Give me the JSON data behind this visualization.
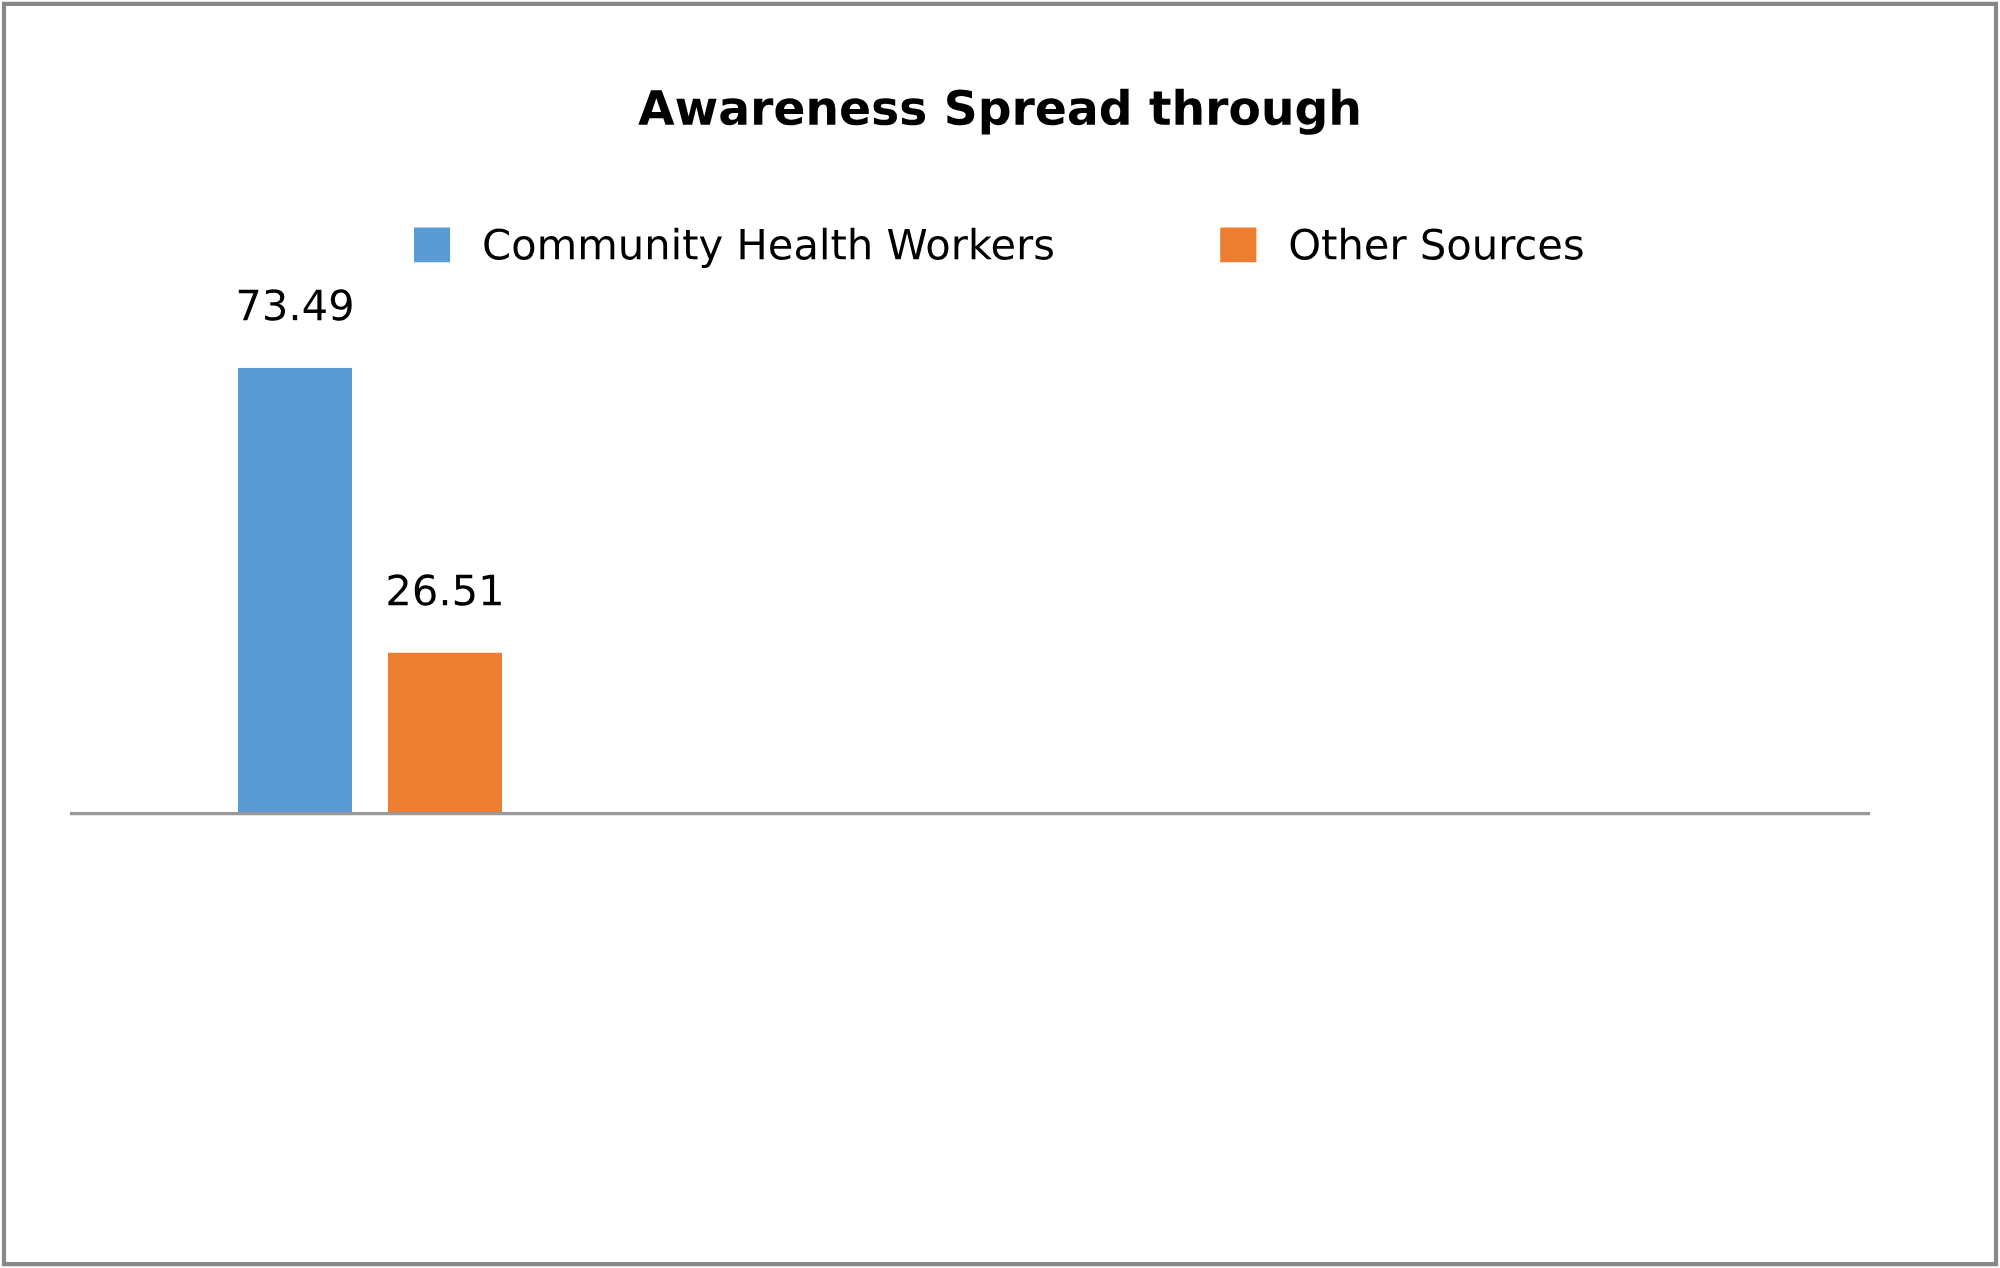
{
  "chart_data": {
    "type": "bar",
    "title": "Awareness Spread through",
    "categories": [
      null
    ],
    "series": [
      {
        "name": "Community Health Workers",
        "color": "#5b9bd5",
        "values": [
          73.49
        ]
      },
      {
        "name": "Other Sources",
        "color": "#ed7d31",
        "values": [
          26.51
        ]
      }
    ],
    "data_labels": true,
    "grid": false,
    "legend": "top"
  }
}
